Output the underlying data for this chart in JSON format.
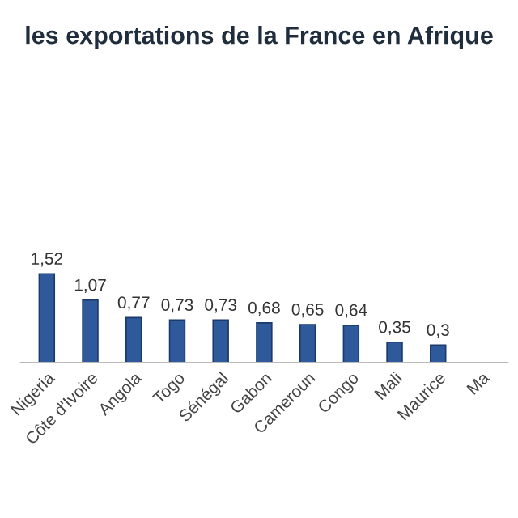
{
  "chart_data": {
    "type": "bar",
    "title": "les exportations de la France en Afrique",
    "categories": [
      "Nigeria",
      "Côte d'Ivoire",
      "Angola",
      "Togo",
      "Sénégal",
      "Gabon",
      "Cameroun",
      "Congo",
      "Mali",
      "Maurice",
      "Ma"
    ],
    "values": [
      1.52,
      1.07,
      0.77,
      0.73,
      0.73,
      0.68,
      0.65,
      0.64,
      0.35,
      0.3,
      null
    ],
    "value_labels": [
      "1,52",
      "1,07",
      "0,77",
      "0,73",
      "0,73",
      "0,68",
      "0,65",
      "0,64",
      "0,35",
      "0,3",
      null
    ],
    "color": "#2e5a9c",
    "tick_labels": "x",
    "grid": false,
    "legend": false
  }
}
